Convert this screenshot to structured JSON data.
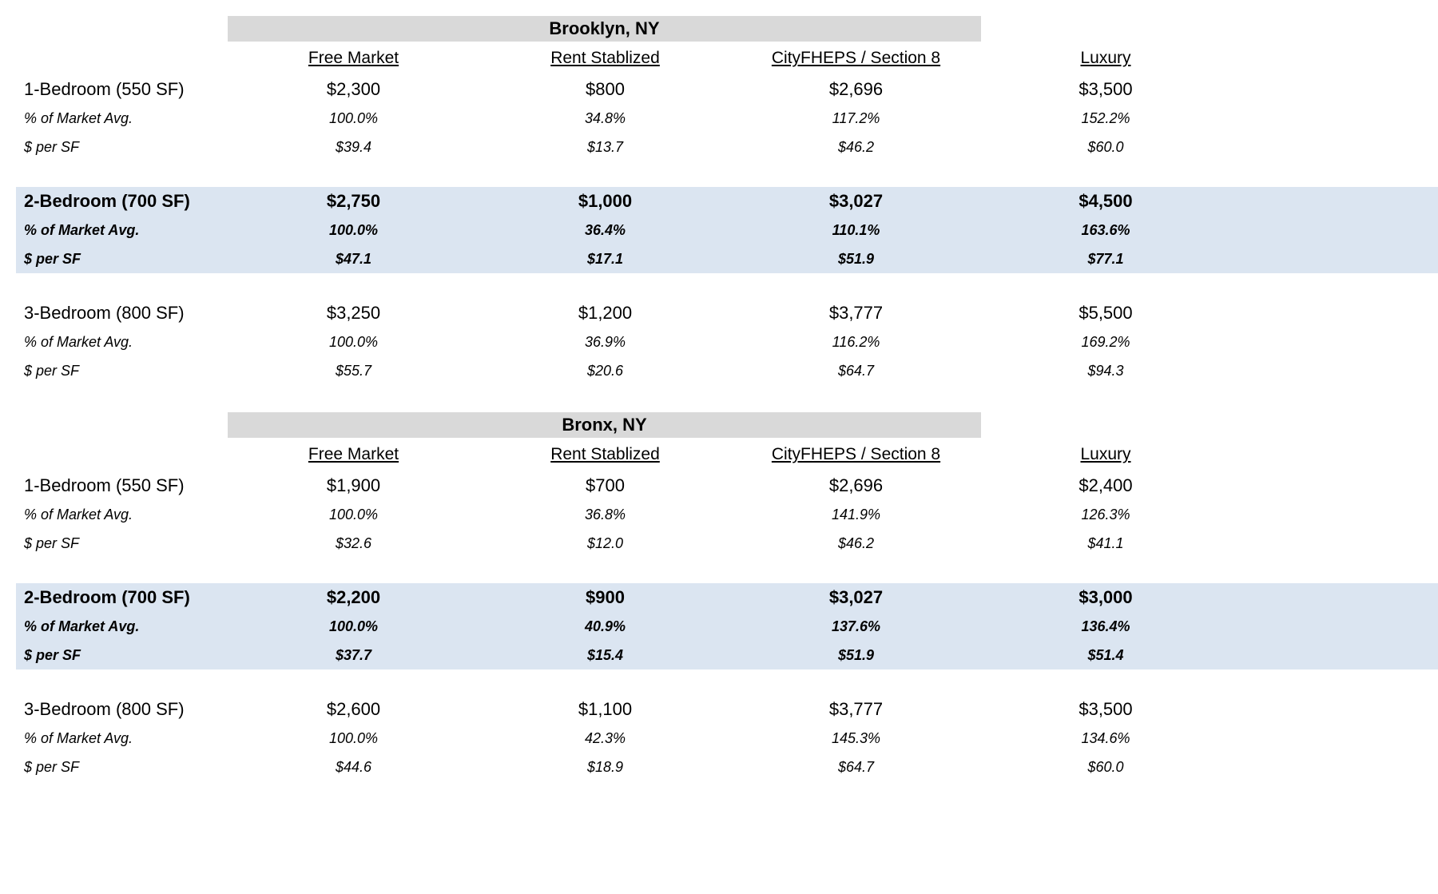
{
  "colors": {
    "section_header_bg": "#d9d9d9",
    "highlight_row_bg": "#dbe5f1",
    "text": "#000000"
  },
  "row_labels": {
    "pct": "% of Market Avg.",
    "psf": "$ per SF"
  },
  "chart_data": {
    "type": "table",
    "title": "",
    "sections": [
      {
        "title": "Brooklyn, NY",
        "columns": [
          "Free Market",
          "Rent Stablized",
          "CityFHEPS / Section 8",
          "Luxury"
        ],
        "groups": [
          {
            "label": "1-Bedroom (550 SF)",
            "highlight": false,
            "rent": [
              "$2,300",
              "$800",
              "$2,696",
              "$3,500"
            ],
            "pct": [
              "100.0%",
              "34.8%",
              "117.2%",
              "152.2%"
            ],
            "psf": [
              "$39.4",
              "$13.7",
              "$46.2",
              "$60.0"
            ]
          },
          {
            "label": "2-Bedroom (700 SF)",
            "highlight": true,
            "rent": [
              "$2,750",
              "$1,000",
              "$3,027",
              "$4,500"
            ],
            "pct": [
              "100.0%",
              "36.4%",
              "110.1%",
              "163.6%"
            ],
            "psf": [
              "$47.1",
              "$17.1",
              "$51.9",
              "$77.1"
            ]
          },
          {
            "label": "3-Bedroom (800 SF)",
            "highlight": false,
            "rent": [
              "$3,250",
              "$1,200",
              "$3,777",
              "$5,500"
            ],
            "pct": [
              "100.0%",
              "36.9%",
              "116.2%",
              "169.2%"
            ],
            "psf": [
              "$55.7",
              "$20.6",
              "$64.7",
              "$94.3"
            ]
          }
        ]
      },
      {
        "title": "Bronx, NY",
        "columns": [
          "Free Market",
          "Rent Stablized",
          "CityFHEPS / Section 8",
          "Luxury"
        ],
        "groups": [
          {
            "label": "1-Bedroom (550 SF)",
            "highlight": false,
            "rent": [
              "$1,900",
              "$700",
              "$2,696",
              "$2,400"
            ],
            "pct": [
              "100.0%",
              "36.8%",
              "141.9%",
              "126.3%"
            ],
            "psf": [
              "$32.6",
              "$12.0",
              "$46.2",
              "$41.1"
            ]
          },
          {
            "label": "2-Bedroom (700 SF)",
            "highlight": true,
            "rent": [
              "$2,200",
              "$900",
              "$3,027",
              "$3,000"
            ],
            "pct": [
              "100.0%",
              "40.9%",
              "137.6%",
              "136.4%"
            ],
            "psf": [
              "$37.7",
              "$15.4",
              "$51.9",
              "$51.4"
            ]
          },
          {
            "label": "3-Bedroom (800 SF)",
            "highlight": false,
            "rent": [
              "$2,600",
              "$1,100",
              "$3,777",
              "$3,500"
            ],
            "pct": [
              "100.0%",
              "42.3%",
              "145.3%",
              "134.6%"
            ],
            "psf": [
              "$44.6",
              "$18.9",
              "$64.7",
              "$60.0"
            ]
          }
        ]
      }
    ]
  }
}
